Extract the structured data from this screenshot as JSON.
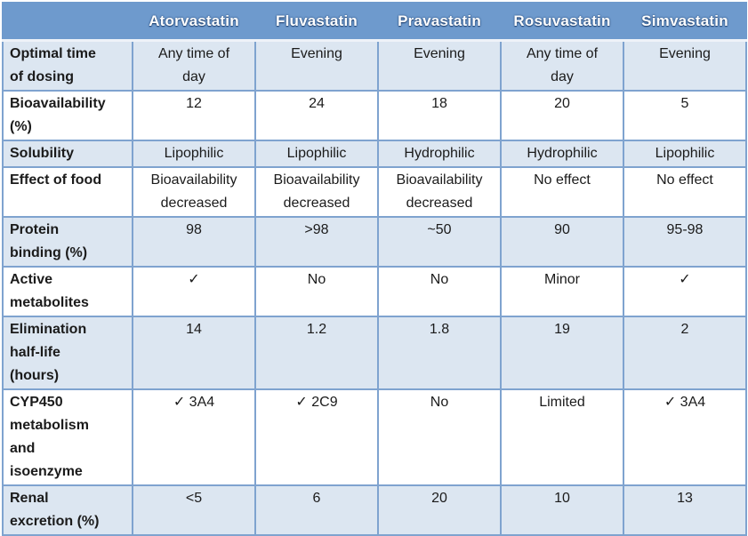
{
  "colors": {
    "header_bg": "#6E9ACD",
    "header_text": "#FFFFFF",
    "shaded_row_bg": "#DCE6F1",
    "plain_row_bg": "#FFFFFF",
    "grid_line": "#7FA3CF",
    "outer_border": "#4E7DB5",
    "text": "#1B1B1B"
  },
  "chart_data": {
    "type": "table",
    "columns": [
      "",
      "Atorvastatin",
      "Fluvastatin",
      "Pravastatin",
      "Rosuvastatin",
      "Simvastatin"
    ],
    "rows": [
      {
        "label": "Optimal time\nof dosing",
        "values": [
          "Any time of\nday",
          "Evening",
          "Evening",
          "Any time of\nday",
          "Evening"
        ]
      },
      {
        "label": "Bioavailability\n(%)",
        "values": [
          "12",
          "24",
          "18",
          "20",
          "5"
        ]
      },
      {
        "label": "Solubility",
        "values": [
          "Lipophilic",
          "Lipophilic",
          "Hydrophilic",
          "Hydrophilic",
          "Lipophilic"
        ]
      },
      {
        "label": "Effect of food",
        "values": [
          "Bioavailability\ndecreased",
          "Bioavailability\ndecreased",
          "Bioavailability\ndecreased",
          "No effect",
          "No effect"
        ]
      },
      {
        "label": "Protein\nbinding (%)",
        "values": [
          "98",
          ">98",
          "~50",
          "90",
          "95-98"
        ]
      },
      {
        "label": "Active\nmetabolites",
        "values": [
          "✓",
          "No",
          "No",
          "Minor",
          "✓"
        ]
      },
      {
        "label": "Elimination\nhalf-life\n(hours)",
        "values": [
          "14",
          "1.2",
          "1.8",
          "19",
          "2"
        ]
      },
      {
        "label": "CYP450\nmetabolism\nand\nisoenzyme",
        "values": [
          "✓ 3A4",
          "✓ 2C9",
          "No",
          "Limited",
          "✓ 3A4"
        ]
      },
      {
        "label": "Renal\nexcretion (%)",
        "values": [
          "<5",
          "6",
          "20",
          "10",
          "13"
        ]
      }
    ]
  }
}
